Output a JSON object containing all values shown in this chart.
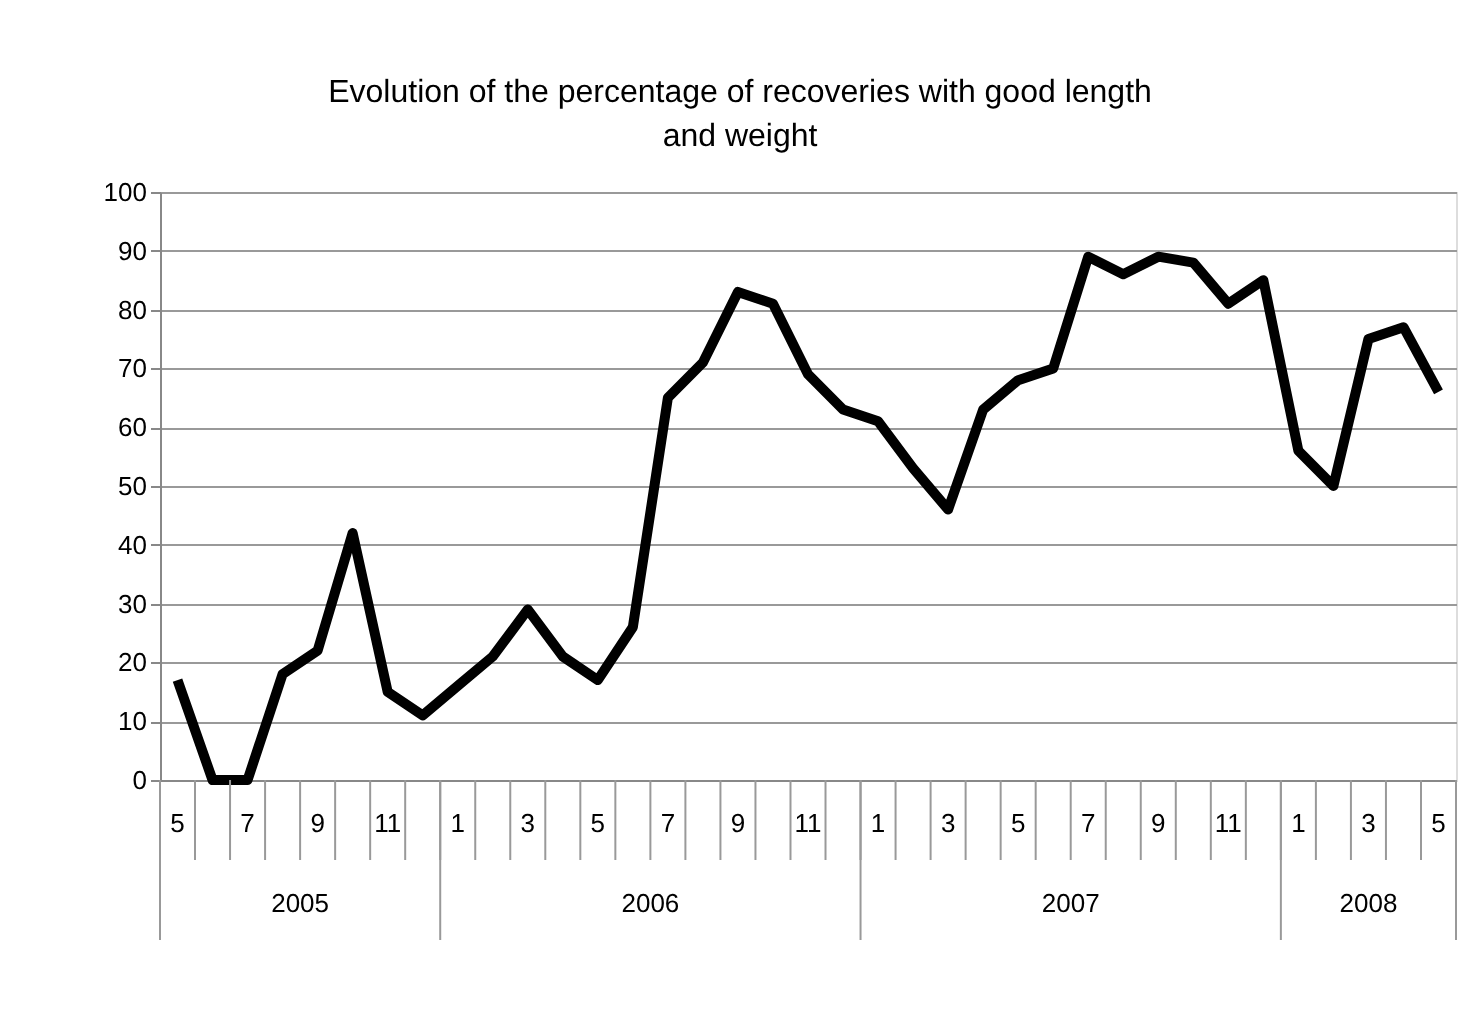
{
  "chart_data": {
    "type": "line",
    "title": "Evolution of the percentage of recoveries with good length and weight",
    "categories": [
      "5",
      null,
      "7",
      null,
      "9",
      null,
      "11",
      null,
      "1",
      null,
      "3",
      null,
      "5",
      null,
      "7",
      null,
      "9",
      null,
      "11",
      null,
      "1",
      null,
      "3",
      null,
      "5",
      null,
      "7",
      null,
      "9",
      null,
      "11",
      null,
      "1",
      null,
      "3",
      null,
      "5"
    ],
    "series": [
      {
        "color": "#000000",
        "values": [
          17,
          0,
          0,
          18,
          22,
          42,
          15,
          11,
          16,
          21,
          29,
          21,
          17,
          26,
          65,
          71,
          83,
          81,
          69,
          63,
          61,
          53,
          46,
          63,
          68,
          70,
          89,
          86,
          89,
          88,
          81,
          85,
          56,
          50,
          75,
          77,
          66
        ]
      }
    ],
    "annotations": [
      "2005",
      "2006",
      "2007",
      "2008"
    ],
    "ylim": [
      0,
      100
    ],
    "yticks": [
      0,
      10,
      20,
      30,
      40,
      50,
      60,
      70,
      80,
      90,
      100
    ],
    "grid": "y",
    "marker": "none",
    "line_style": "solid"
  }
}
